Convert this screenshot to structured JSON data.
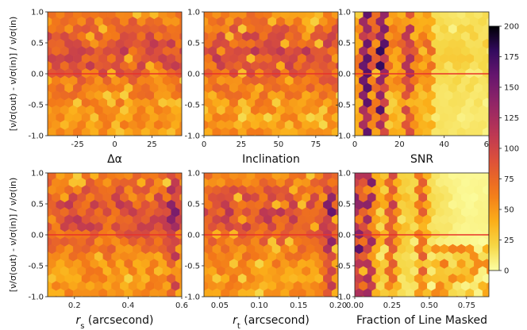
{
  "chart_data": {
    "type": "heatmap",
    "figure_kind": "hexbin grid 2x3",
    "ylabel": "[ν/σ(out) - ν/σ(in)] / ν/σ(in)",
    "ylim": [
      -1.0,
      1.0
    ],
    "yticks": [
      "-1.0",
      "-0.5",
      "0.0",
      "0.5",
      "1.0"
    ],
    "reference_line_y": 0.0,
    "colorbar": {
      "min": 0,
      "max": 200,
      "ticks": [
        "0",
        "25",
        "50",
        "75",
        "100",
        "125",
        "150",
        "175",
        "200"
      ],
      "colormap": "inferno_r"
    },
    "panels": [
      {
        "id": "delta-alpha",
        "xlabel": "Δα",
        "xlim": [
          -45,
          45
        ],
        "xticks": [
          -25,
          0,
          25
        ],
        "xtick_labels": [
          "-25",
          "0",
          "25"
        ],
        "density_level": 0.45,
        "peak_columns": []
      },
      {
        "id": "inclination",
        "xlabel": "Inclination",
        "xlim": [
          0,
          90
        ],
        "xticks": [
          0,
          25,
          50,
          75
        ],
        "xtick_labels": [
          "0",
          "25",
          "50",
          "75"
        ],
        "density_level": 0.45,
        "peak_columns": []
      },
      {
        "id": "snr",
        "xlabel": "SNR",
        "xlim": [
          0,
          60
        ],
        "xticks": [
          0,
          20,
          40,
          60
        ],
        "xtick_labels": [
          "0",
          "20",
          "40",
          "60"
        ],
        "density_level": 0.3,
        "peak_columns": [
          5,
          12,
          24
        ]
      },
      {
        "id": "r-s",
        "xlabel": "r_s (arcsecond)",
        "xlim": [
          0.1,
          0.6
        ],
        "xticks": [
          0.2,
          0.4,
          0.6
        ],
        "xtick_labels": [
          "0.2",
          "0.4",
          "0.6"
        ],
        "density_level": 0.45,
        "peak_columns": [
          0.57
        ]
      },
      {
        "id": "r-t",
        "xlabel": "r_t (arcsecond)",
        "xlim": [
          0.03,
          0.2
        ],
        "xticks": [
          0.05,
          0.1,
          0.15,
          0.2
        ],
        "xtick_labels": [
          "0.05",
          "0.10",
          "0.15",
          "0.20"
        ],
        "density_level": 0.45,
        "peak_columns": [
          0.19
        ]
      },
      {
        "id": "fraction-masked",
        "xlabel": "Fraction of Line Masked",
        "xlim": [
          0,
          0.9
        ],
        "xticks": [
          0,
          0.25,
          0.5,
          0.75
        ],
        "xtick_labels": [
          "0.00",
          "0.25",
          "0.50",
          "0.75"
        ],
        "density_level": 0.25,
        "peak_columns": [
          0.02,
          0.1,
          0.25,
          0.45
        ]
      }
    ]
  },
  "colors": {
    "reference_line": "#e8322a",
    "axis": "#222222"
  }
}
